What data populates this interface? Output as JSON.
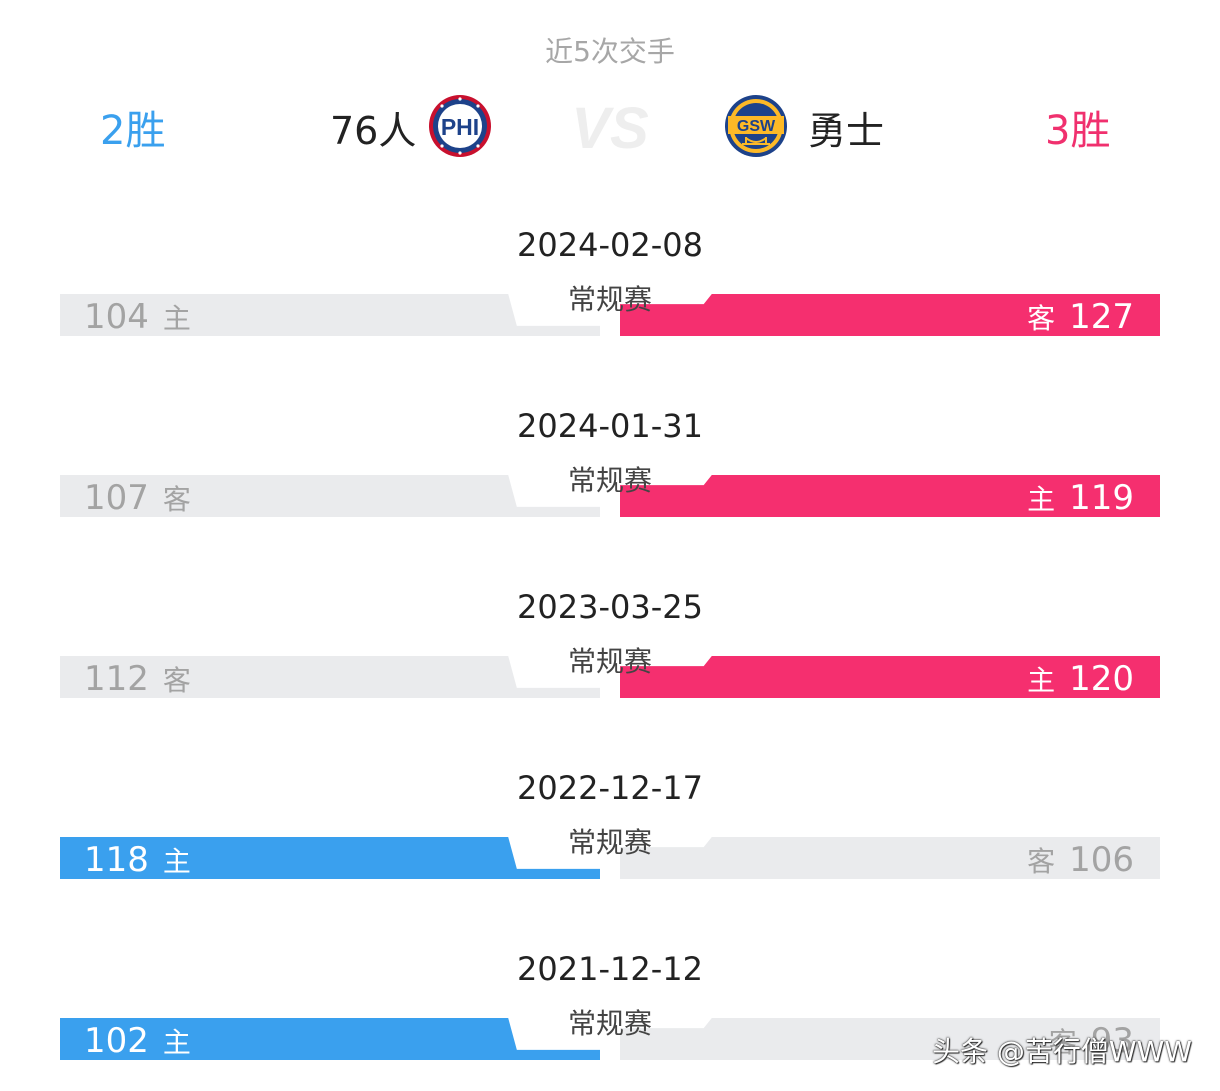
{
  "header": {
    "title": "近5次交手",
    "left_team": {
      "wins": "2胜",
      "name": "76人",
      "logo_text": "PHI",
      "color": "#3aa0ee"
    },
    "right_team": {
      "wins": "3胜",
      "name": "勇士",
      "logo_text": "GSW",
      "color": "#f0306e"
    },
    "vs_icon": "vs-icon"
  },
  "games": [
    {
      "date": "2024-02-08",
      "type": "常规赛",
      "left": {
        "score": "104",
        "loc": "主",
        "win": false
      },
      "right": {
        "score": "127",
        "loc": "客",
        "win": true
      }
    },
    {
      "date": "2024-01-31",
      "type": "常规赛",
      "left": {
        "score": "107",
        "loc": "客",
        "win": false
      },
      "right": {
        "score": "119",
        "loc": "主",
        "win": true
      }
    },
    {
      "date": "2023-03-25",
      "type": "常规赛",
      "left": {
        "score": "112",
        "loc": "客",
        "win": false
      },
      "right": {
        "score": "120",
        "loc": "主",
        "win": true
      }
    },
    {
      "date": "2022-12-17",
      "type": "常规赛",
      "left": {
        "score": "118",
        "loc": "主",
        "win": true
      },
      "right": {
        "score": "106",
        "loc": "客",
        "win": false
      }
    },
    {
      "date": "2021-12-12",
      "type": "常规赛",
      "left": {
        "score": "102",
        "loc": "主",
        "win": true
      },
      "right": {
        "score": "93",
        "loc": "客",
        "win": false
      }
    }
  ],
  "watermark": "头条 @苦行僧WWW"
}
